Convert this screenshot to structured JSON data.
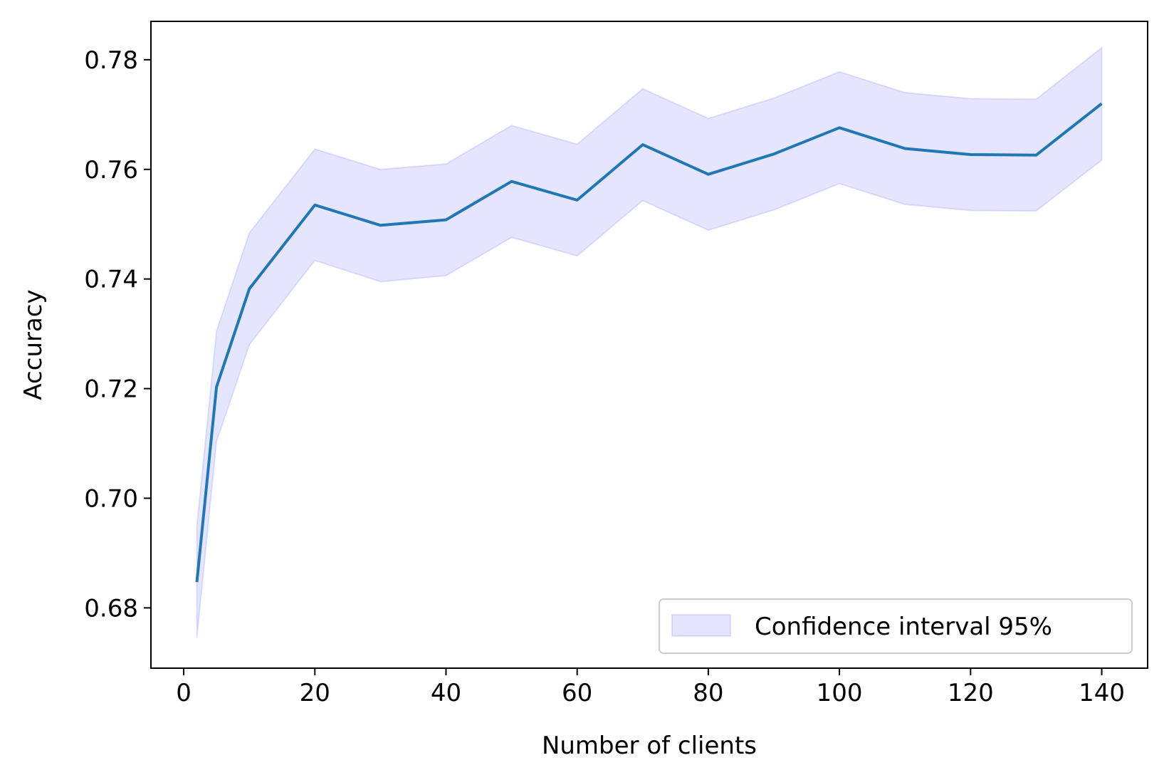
{
  "chart_data": {
    "type": "line",
    "title": "",
    "xlabel": "Number of clients",
    "ylabel": "Accuracy",
    "xlim": [
      -5,
      147
    ],
    "ylim": [
      0.669,
      0.787
    ],
    "xticks": [
      0,
      20,
      40,
      60,
      80,
      100,
      120,
      140
    ],
    "xtick_labels": [
      "0",
      "20",
      "40",
      "60",
      "80",
      "100",
      "120",
      "140"
    ],
    "yticks": [
      0.68,
      0.7,
      0.72,
      0.74,
      0.76,
      0.78
    ],
    "ytick_labels": [
      "0.68",
      "0.70",
      "0.72",
      "0.74",
      "0.76",
      "0.78"
    ],
    "grid": false,
    "legend": {
      "placement": "lower-right",
      "entries": [
        "Confidence interval 95%"
      ]
    },
    "series": [
      {
        "x": [
          2,
          5,
          10,
          20,
          30,
          40,
          50,
          60,
          70,
          80,
          90,
          100,
          110,
          120,
          130,
          140
        ],
        "values": [
          0.6847,
          0.7203,
          0.7382,
          0.7535,
          0.7498,
          0.7508,
          0.7578,
          0.7544,
          0.7645,
          0.7591,
          0.7628,
          0.7676,
          0.7638,
          0.7627,
          0.7626,
          0.772
        ],
        "lower": [
          0.6745,
          0.7103,
          0.728,
          0.7434,
          0.7395,
          0.7406,
          0.7476,
          0.7442,
          0.7543,
          0.7489,
          0.7526,
          0.7574,
          0.7536,
          0.7525,
          0.7524,
          0.7617
        ],
        "upper": [
          0.6949,
          0.7305,
          0.7484,
          0.7637,
          0.76,
          0.761,
          0.768,
          0.7646,
          0.7747,
          0.7693,
          0.773,
          0.7778,
          0.774,
          0.7729,
          0.7728,
          0.7822
        ],
        "color": "#1f77b4",
        "band_color": "#0000ff",
        "band_label": "Confidence interval 95%"
      }
    ]
  }
}
